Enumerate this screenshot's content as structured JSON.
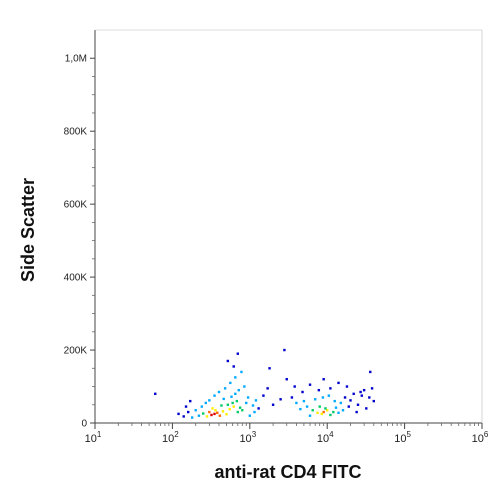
{
  "chart_data": {
    "type": "scatter",
    "subtype": "flow-cytometry-density-dot-plot",
    "title": "",
    "xlabel": "anti-rat CD4 FITC",
    "ylabel": "Side Scatter",
    "x_scale": "log",
    "xlim": [
      10,
      1000000
    ],
    "ylim": [
      0,
      1050000
    ],
    "x_ticks": [
      {
        "value": 10,
        "base": "10",
        "exp": "1"
      },
      {
        "value": 100,
        "base": "10",
        "exp": "2"
      },
      {
        "value": 1000,
        "base": "10",
        "exp": "3"
      },
      {
        "value": 10000,
        "base": "10",
        "exp": "4"
      },
      {
        "value": 100000,
        "base": "10",
        "exp": "5"
      },
      {
        "value": 1000000,
        "base": "10",
        "exp": "6"
      }
    ],
    "y_ticks": [
      {
        "value": 0,
        "label": "0"
      },
      {
        "value": 200000,
        "label": "200K"
      },
      {
        "value": 400000,
        "label": "400K"
      },
      {
        "value": 600000,
        "label": "600K"
      },
      {
        "value": 800000,
        "label": "800K"
      },
      {
        "value": 1000000,
        "label": "1,0M"
      }
    ],
    "grid": false,
    "density_colors": [
      "#0000cc",
      "#00aaff",
      "#00cc66",
      "#ffee00",
      "#ff6600",
      "#dd0000"
    ],
    "populations": [
      {
        "x_center": 350,
        "y_center": 25000,
        "density": "high"
      },
      {
        "x_center": 650,
        "y_center": 40000,
        "density": "medium"
      },
      {
        "x_center": 9000,
        "y_center": 30000,
        "density": "medium"
      }
    ],
    "series": [
      {
        "points": [
          [
            350,
            25000,
            5
          ],
          [
            320,
            22000,
            5
          ],
          [
            380,
            28000,
            4
          ],
          [
            300,
            30000,
            4
          ],
          [
            410,
            20000,
            4
          ],
          [
            360,
            35000,
            3
          ],
          [
            280,
            18000,
            3
          ],
          [
            450,
            32000,
            3
          ],
          [
            330,
            40000,
            3
          ],
          [
            250,
            26000,
            2
          ],
          [
            500,
            24000,
            3
          ],
          [
            550,
            38000,
            3
          ],
          [
            620,
            45000,
            3
          ],
          [
            700,
            30000,
            2
          ],
          [
            600,
            55000,
            2
          ],
          [
            680,
            60000,
            2
          ],
          [
            750,
            42000,
            2
          ],
          [
            520,
            50000,
            2
          ],
          [
            430,
            48000,
            2
          ],
          [
            800,
            35000,
            2
          ],
          [
            220,
            20000,
            1
          ],
          [
            200,
            35000,
            1
          ],
          [
            180,
            15000,
            1
          ],
          [
            240,
            45000,
            1
          ],
          [
            270,
            55000,
            1
          ],
          [
            300,
            62000,
            1
          ],
          [
            460,
            66000,
            1
          ],
          [
            580,
            72000,
            1
          ],
          [
            650,
            80000,
            1
          ],
          [
            720,
            90000,
            1
          ],
          [
            900,
            55000,
            1
          ],
          [
            950,
            70000,
            1
          ],
          [
            1100,
            48000,
            1
          ],
          [
            1200,
            62000,
            1
          ],
          [
            850,
            100000,
            1
          ],
          [
            560,
            110000,
            1
          ],
          [
            480,
            95000,
            1
          ],
          [
            650,
            125000,
            1
          ],
          [
            780,
            140000,
            1
          ],
          [
            520,
            170000,
            0
          ],
          [
            700,
            190000,
            0
          ],
          [
            620,
            155000,
            0
          ],
          [
            400,
            85000,
            1
          ],
          [
            350,
            75000,
            1
          ],
          [
            160,
            30000,
            0
          ],
          [
            150,
            45000,
            0
          ],
          [
            120,
            25000,
            0
          ],
          [
            60,
            80000,
            0
          ],
          [
            170,
            60000,
            0
          ],
          [
            140,
            18000,
            0
          ],
          [
            1000,
            20000,
            1
          ],
          [
            1150,
            30000,
            1
          ],
          [
            1300,
            40000,
            0
          ],
          [
            1500,
            75000,
            0
          ],
          [
            1700,
            95000,
            0
          ],
          [
            2000,
            50000,
            0
          ],
          [
            2500,
            65000,
            0
          ],
          [
            3000,
            120000,
            0
          ],
          [
            2800,
            200000,
            0
          ],
          [
            1800,
            150000,
            0
          ],
          [
            9000,
            30000,
            4
          ],
          [
            8500,
            25000,
            3
          ],
          [
            10000,
            35000,
            3
          ],
          [
            7500,
            28000,
            3
          ],
          [
            11000,
            22000,
            2
          ],
          [
            9500,
            40000,
            2
          ],
          [
            12000,
            30000,
            2
          ],
          [
            6500,
            35000,
            2
          ],
          [
            8000,
            45000,
            2
          ],
          [
            13000,
            42000,
            1
          ],
          [
            14000,
            28000,
            1
          ],
          [
            6000,
            20000,
            1
          ],
          [
            5500,
            45000,
            1
          ],
          [
            5000,
            60000,
            1
          ],
          [
            4500,
            38000,
            1
          ],
          [
            4000,
            55000,
            1
          ],
          [
            3500,
            70000,
            0
          ],
          [
            7000,
            65000,
            1
          ],
          [
            8800,
            70000,
            1
          ],
          [
            10500,
            75000,
            1
          ],
          [
            12500,
            60000,
            1
          ],
          [
            15000,
            55000,
            1
          ],
          [
            17000,
            70000,
            0
          ],
          [
            20000,
            62000,
            0
          ],
          [
            22000,
            80000,
            0
          ],
          [
            25000,
            50000,
            0
          ],
          [
            28000,
            75000,
            0
          ],
          [
            30000,
            90000,
            0
          ],
          [
            35000,
            70000,
            0
          ],
          [
            38000,
            95000,
            0
          ],
          [
            40000,
            60000,
            0
          ],
          [
            18000,
            100000,
            0
          ],
          [
            14000,
            110000,
            0
          ],
          [
            9000,
            120000,
            0
          ],
          [
            11000,
            95000,
            0
          ],
          [
            6000,
            105000,
            0
          ],
          [
            16000,
            35000,
            1
          ],
          [
            19000,
            45000,
            0
          ],
          [
            24000,
            30000,
            0
          ],
          [
            32000,
            40000,
            0
          ],
          [
            36000,
            140000,
            0
          ],
          [
            27000,
            85000,
            0
          ],
          [
            7800,
            90000,
            0
          ],
          [
            4800,
            85000,
            0
          ],
          [
            3800,
            100000,
            0
          ]
        ]
      }
    ]
  }
}
